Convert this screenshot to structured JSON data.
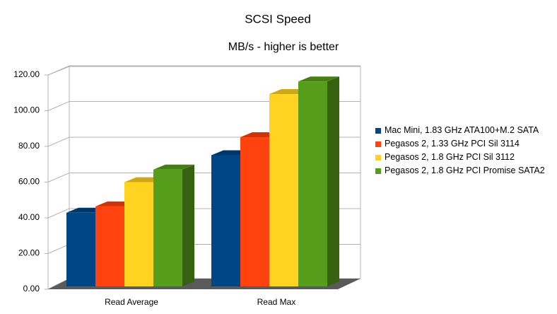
{
  "chart_data": {
    "type": "bar3d",
    "title": "SCSI Speed",
    "subtitle": "MB/s - higher is better",
    "categories": [
      "Read Average",
      "Read Max"
    ],
    "series": [
      {
        "name": "Mac Mini, 1.83 GHz ATA100+M.2 SATA",
        "color": "#004586",
        "values": [
          41,
          73
        ]
      },
      {
        "name": "Pegasos 2, 1.33 GHz PCI Sil 3114",
        "color": "#ff420e",
        "values": [
          44.5,
          83
        ]
      },
      {
        "name": "Pegasos 2, 1.8 GHz PCI Sil 3112",
        "color": "#ffd320",
        "values": [
          58,
          107
        ]
      },
      {
        "name": "Pegasos 2, 1.8 GHz PCI Promise SATA2",
        "color": "#579d1c",
        "values": [
          65,
          114
        ]
      }
    ],
    "ylim": [
      0,
      120
    ],
    "yticks": [
      {
        "value": 0,
        "label": "0.00"
      },
      {
        "value": 20,
        "label": "20.00"
      },
      {
        "value": 40,
        "label": "40.00"
      },
      {
        "value": 60,
        "label": "60.00"
      },
      {
        "value": 80,
        "label": "80.00"
      },
      {
        "value": 100,
        "label": "100.00"
      },
      {
        "value": 120,
        "label": "120.00"
      }
    ],
    "grid": true,
    "legend": "right"
  }
}
